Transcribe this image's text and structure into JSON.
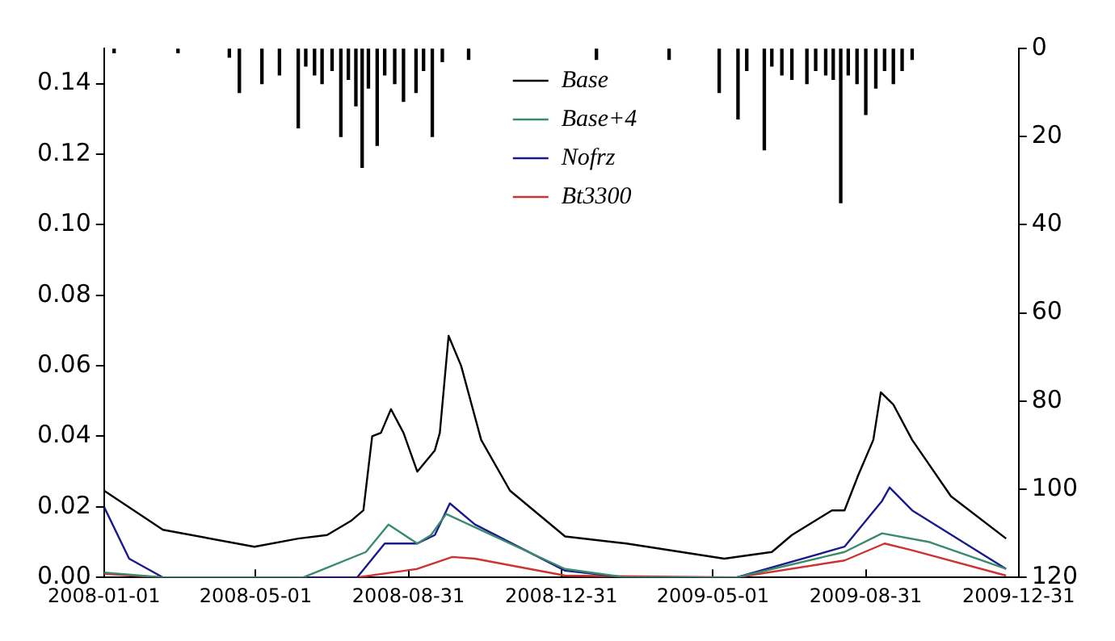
{
  "chart_data": {
    "type": "line",
    "legend": "top",
    "marker": "none",
    "line_style": "solid",
    "grid": false,
    "xlim": [
      "2008-01-01",
      "2009-12-31"
    ],
    "xticks": [
      "2008-01-01",
      "2008-05-01",
      "2008-08-31",
      "2008-12-31",
      "2009-05-01",
      "2009-08-31",
      "2009-12-31"
    ],
    "ylim": [
      0,
      0.15
    ],
    "yticks": [
      {
        "value": 0,
        "label": "0.00"
      },
      {
        "value": 0.02,
        "label": "0.02"
      },
      {
        "value": 0.04,
        "label": "0.04"
      },
      {
        "value": 0.06,
        "label": "0.06"
      },
      {
        "value": 0.08,
        "label": "0.08"
      },
      {
        "value": 0.1,
        "label": "0.10"
      },
      {
        "value": 0.12,
        "label": "0.12"
      },
      {
        "value": 0.14,
        "label": "0.14"
      }
    ],
    "y2lim": [
      120,
      0
    ],
    "y2ticks": [
      0,
      20,
      40,
      60,
      80,
      100,
      120
    ],
    "series": [
      {
        "type": "bar",
        "axis": "y2",
        "color": "#000000",
        "x": [
          "2008-01-09",
          "2008-02-29",
          "2008-04-10",
          "2008-04-18",
          "2008-05-06",
          "2008-05-20",
          "2008-06-04",
          "2008-06-10",
          "2008-06-17",
          "2008-06-23",
          "2008-07-01",
          "2008-07-08",
          "2008-07-14",
          "2008-07-20",
          "2008-07-25",
          "2008-07-30",
          "2008-08-06",
          "2008-08-12",
          "2008-08-20",
          "2008-08-27",
          "2008-09-06",
          "2008-09-12",
          "2008-09-19",
          "2008-09-27",
          "2008-10-18",
          "2009-01-28",
          "2009-03-27",
          "2009-05-06",
          "2009-05-21",
          "2009-05-28",
          "2009-06-11",
          "2009-06-17",
          "2009-06-25",
          "2009-07-03",
          "2009-07-15",
          "2009-07-22",
          "2009-07-30",
          "2009-08-05",
          "2009-08-11",
          "2009-08-17",
          "2009-08-24",
          "2009-08-31",
          "2009-09-08",
          "2009-09-15",
          "2009-09-22",
          "2009-09-29",
          "2009-10-07"
        ],
        "values": [
          1,
          1,
          2,
          10,
          8,
          6,
          18,
          4,
          6,
          8,
          5,
          20,
          7,
          13,
          27,
          9,
          22,
          6,
          8,
          12,
          10,
          5,
          20,
          3,
          2.5,
          2.5,
          2.5,
          10,
          16,
          5,
          23,
          4,
          6,
          7,
          8,
          5,
          6,
          7,
          35,
          6,
          8,
          15,
          9,
          5,
          8,
          5,
          2.5
        ]
      },
      {
        "name": "Base",
        "color": "#000000",
        "x": [
          "2008-01-01",
          "2008-02-17",
          "2008-04-30",
          "2008-06-04",
          "2008-06-27",
          "2008-07-16",
          "2008-07-26",
          "2008-08-02",
          "2008-08-09",
          "2008-08-17",
          "2008-08-27",
          "2008-09-07",
          "2008-09-21",
          "2008-09-25",
          "2008-10-02",
          "2008-10-12",
          "2008-10-28",
          "2008-11-20",
          "2009-01-03",
          "2009-02-21",
          "2009-05-10",
          "2009-06-17",
          "2009-07-03",
          "2009-08-04",
          "2009-08-14",
          "2009-08-25",
          "2009-09-06",
          "2009-09-12",
          "2009-09-22",
          "2009-10-07",
          "2009-11-07",
          "2009-12-21"
        ],
        "values": [
          0.0246,
          0.0135,
          0.0087,
          0.011,
          0.012,
          0.016,
          0.019,
          0.04,
          0.041,
          0.0477,
          0.041,
          0.03,
          0.036,
          0.041,
          0.0685,
          0.06,
          0.039,
          0.0246,
          0.0116,
          0.0096,
          0.0053,
          0.0072,
          0.012,
          0.019,
          0.019,
          0.029,
          0.039,
          0.0525,
          0.049,
          0.039,
          0.023,
          0.011
        ]
      },
      {
        "name": "Base+4",
        "color": "#3a8a6e",
        "x": [
          "2008-01-01",
          "2008-02-17",
          "2008-06-08",
          "2008-07-28",
          "2008-08-15",
          "2008-09-07",
          "2008-09-18",
          "2008-09-30",
          "2009-01-03",
          "2009-02-20",
          "2009-05-20",
          "2009-08-14",
          "2009-09-13",
          "2009-10-21",
          "2009-12-21"
        ],
        "values": [
          0.0014,
          0,
          0,
          0.0072,
          0.015,
          0.0096,
          0.012,
          0.018,
          0.0024,
          0,
          0,
          0.0072,
          0.0125,
          0.01,
          0.0024
        ]
      },
      {
        "name": "Nofrz",
        "color": "#1a1a8c",
        "x": [
          "2008-01-01",
          "2008-01-21",
          "2008-02-17",
          "2008-07-21",
          "2008-08-12",
          "2008-09-07",
          "2008-09-21",
          "2008-10-03",
          "2008-10-23",
          "2009-01-03",
          "2009-02-20",
          "2009-05-20",
          "2009-08-14",
          "2009-09-13",
          "2009-09-19",
          "2009-10-07",
          "2009-12-21"
        ],
        "values": [
          0.02,
          0.0053,
          0,
          0,
          0.0096,
          0.0096,
          0.012,
          0.021,
          0.015,
          0.0019,
          0,
          0,
          0.0087,
          0.0217,
          0.0255,
          0.019,
          0.0024
        ]
      },
      {
        "name": "Bt3300",
        "color": "#cc3333",
        "x": [
          "2008-01-01",
          "2008-02-17",
          "2008-07-21",
          "2008-09-07",
          "2008-10-05",
          "2008-10-23",
          "2009-01-03",
          "2009-05-20",
          "2009-08-14",
          "2009-09-15",
          "2009-10-07",
          "2009-12-21"
        ],
        "values": [
          0.001,
          0,
          0,
          0.0024,
          0.0058,
          0.0053,
          0.0005,
          0,
          0.0048,
          0.0096,
          0.0077,
          0.0005
        ]
      }
    ]
  }
}
